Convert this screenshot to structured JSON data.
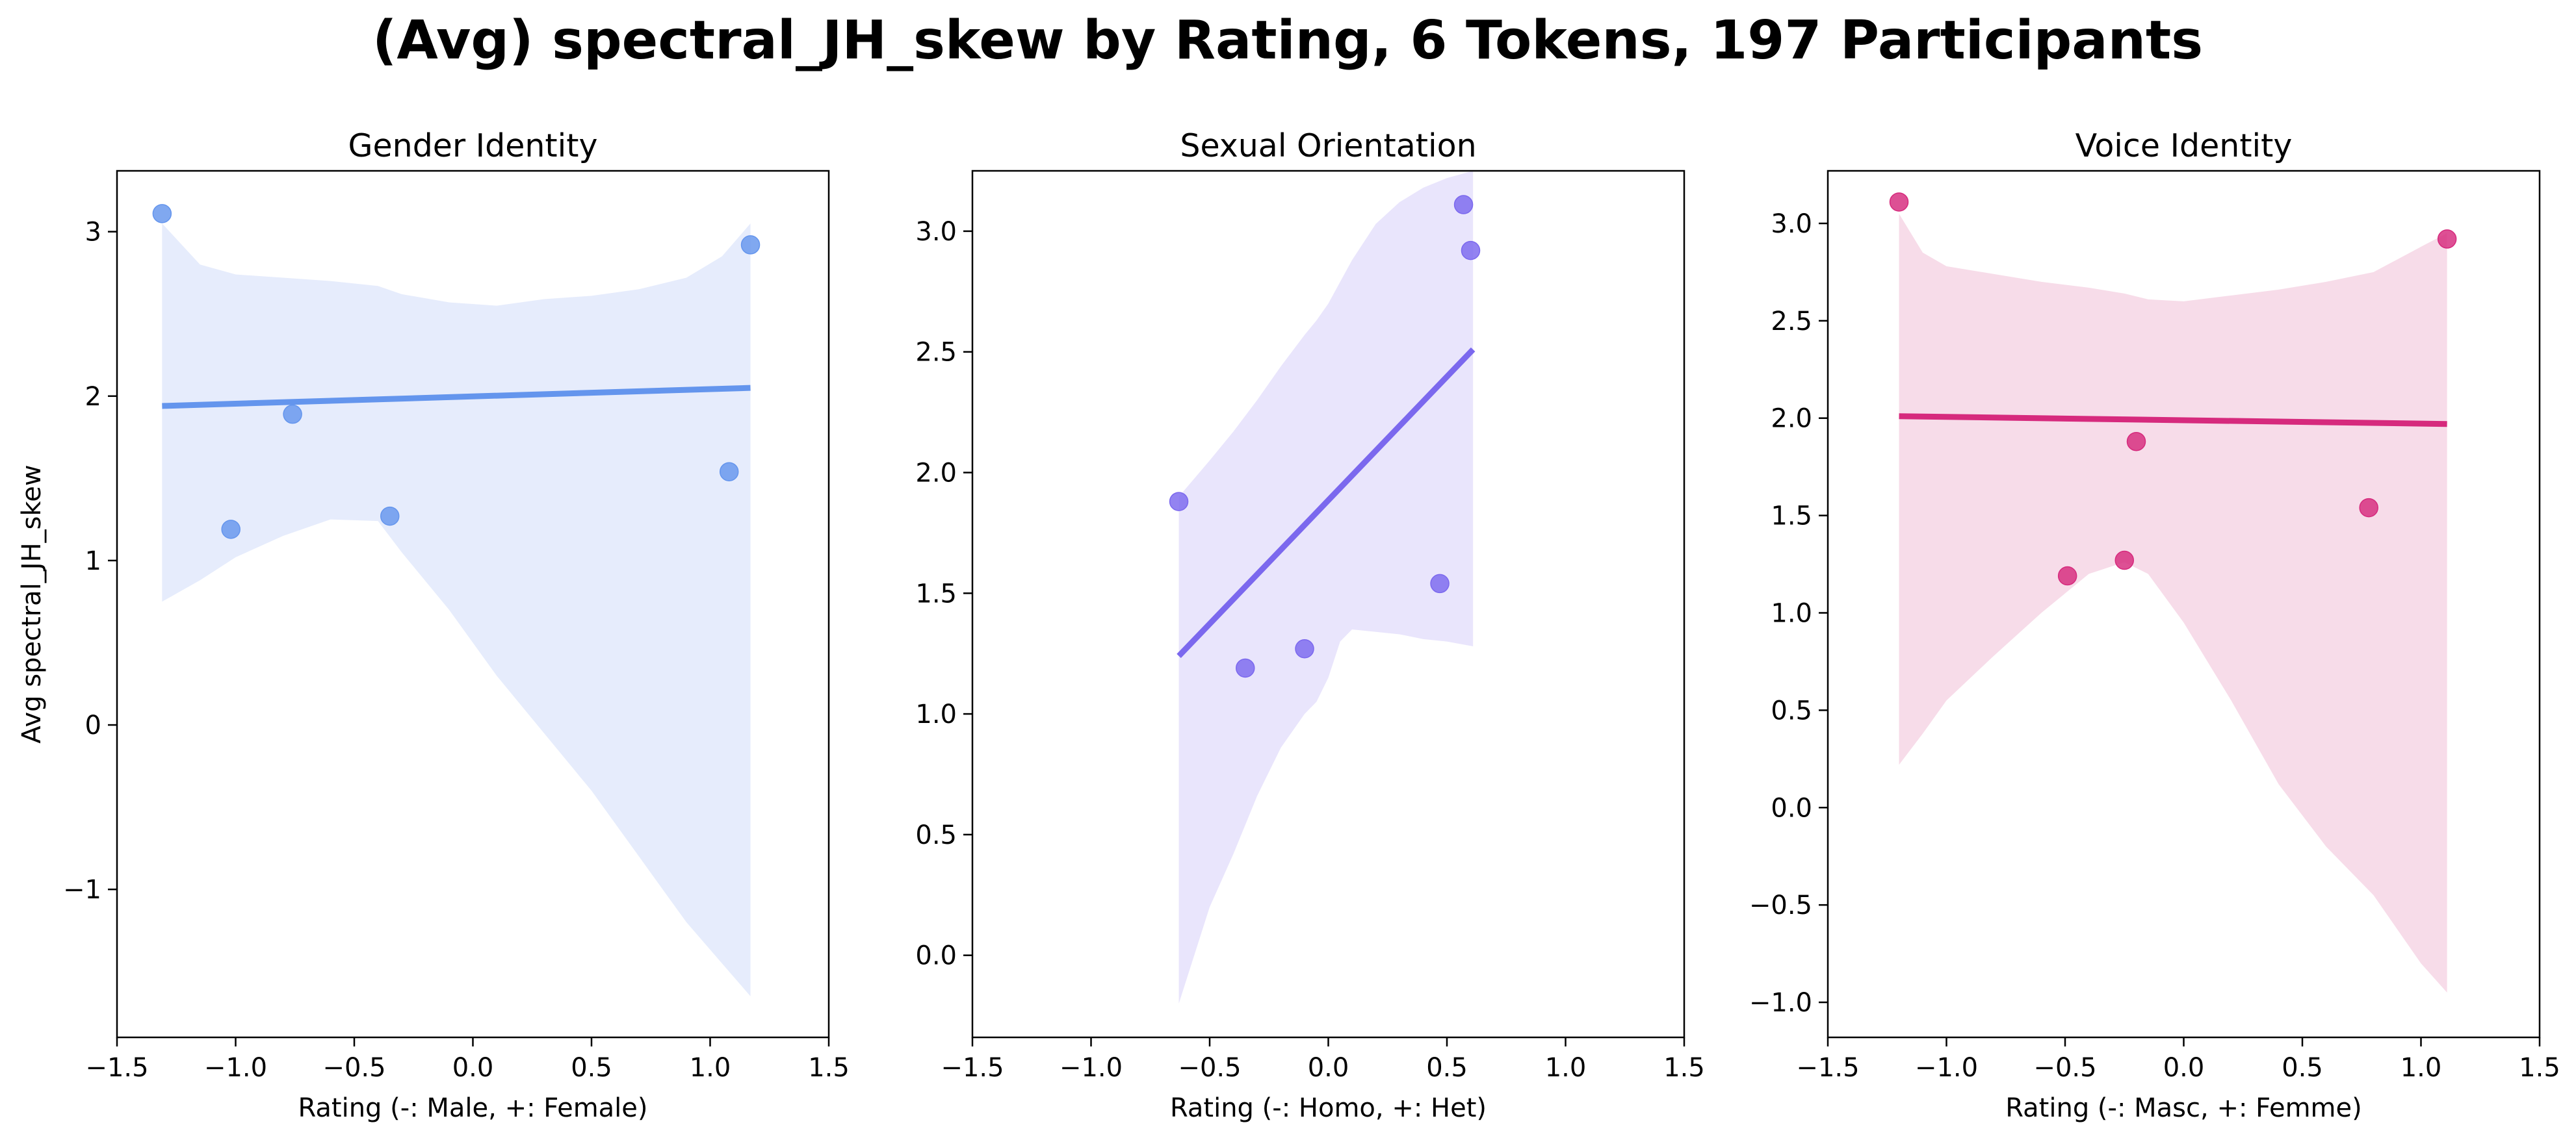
{
  "figure": {
    "title": "(Avg) spectral_JH_skew by Rating, 6 Tokens, 197 Participants"
  },
  "chart_data": [
    {
      "type": "scatter",
      "title": "Gender Identity",
      "xlabel": "Rating (-: Male, +: Female)",
      "ylabel": "Avg spectral_JH_skew",
      "xlim": [
        -1.5,
        1.5
      ],
      "ylim": [
        -1.9,
        3.37
      ],
      "xticks": [
        -1.5,
        -1.0,
        -0.5,
        0.0,
        0.5,
        1.0,
        1.5
      ],
      "xtick_labels": [
        "−1.5",
        "−1.0",
        "−0.5",
        "0.0",
        "0.5",
        "1.0",
        "1.5"
      ],
      "yticks": [
        -1,
        0,
        1,
        2,
        3
      ],
      "ytick_labels": [
        "−1",
        "0",
        "1",
        "2",
        "3"
      ],
      "color": "#6495ED",
      "band_color": "#E6ECFC",
      "points": [
        {
          "x": -1.31,
          "y": 3.11
        },
        {
          "x": -1.02,
          "y": 1.19
        },
        {
          "x": -0.76,
          "y": 1.89
        },
        {
          "x": -0.35,
          "y": 1.27
        },
        {
          "x": 1.08,
          "y": 1.54
        },
        {
          "x": 1.17,
          "y": 2.92
        }
      ],
      "fit": {
        "x": [
          -1.31,
          1.17
        ],
        "y": [
          1.94,
          2.05
        ]
      },
      "band": {
        "x": [
          -1.31,
          -1.15,
          -1.0,
          -0.8,
          -0.6,
          -0.4,
          -0.3,
          -0.1,
          0.1,
          0.3,
          0.5,
          0.7,
          0.9,
          1.05,
          1.17
        ],
        "upper": [
          3.05,
          2.8,
          2.74,
          2.72,
          2.7,
          2.67,
          2.62,
          2.57,
          2.55,
          2.59,
          2.61,
          2.65,
          2.72,
          2.85,
          3.05
        ],
        "lower": [
          0.75,
          0.88,
          1.02,
          1.15,
          1.25,
          1.24,
          1.05,
          0.7,
          0.3,
          -0.05,
          -0.4,
          -0.8,
          -1.2,
          -1.45,
          -1.65
        ]
      }
    },
    {
      "type": "scatter",
      "title": "Sexual Orientation",
      "xlabel": "Rating (-: Homo, +: Het)",
      "ylabel": "",
      "xlim": [
        -1.5,
        1.5
      ],
      "ylim": [
        -0.34,
        3.25
      ],
      "xticks": [
        -1.5,
        -1.0,
        -0.5,
        0.0,
        0.5,
        1.0,
        1.5
      ],
      "xtick_labels": [
        "−1.5",
        "−1.0",
        "−0.5",
        "0.0",
        "0.5",
        "1.0",
        "1.5"
      ],
      "yticks": [
        0.0,
        0.5,
        1.0,
        1.5,
        2.0,
        2.5,
        3.0
      ],
      "ytick_labels": [
        "0.0",
        "0.5",
        "1.0",
        "1.5",
        "2.0",
        "2.5",
        "3.0"
      ],
      "color": "#7B68EE",
      "band_color": "#E9E5FC",
      "points": [
        {
          "x": -0.63,
          "y": 1.88
        },
        {
          "x": -0.35,
          "y": 1.19
        },
        {
          "x": -0.1,
          "y": 1.27
        },
        {
          "x": 0.47,
          "y": 1.54
        },
        {
          "x": 0.57,
          "y": 3.11
        },
        {
          "x": 0.6,
          "y": 2.92
        }
      ],
      "fit": {
        "x": [
          -0.63,
          0.61
        ],
        "y": [
          1.24,
          2.51
        ]
      },
      "band": {
        "x": [
          -0.63,
          -0.5,
          -0.4,
          -0.3,
          -0.2,
          -0.1,
          -0.05,
          0.0,
          0.05,
          0.1,
          0.2,
          0.3,
          0.4,
          0.5,
          0.61
        ],
        "upper": [
          1.9,
          2.05,
          2.17,
          2.3,
          2.44,
          2.57,
          2.63,
          2.7,
          2.79,
          2.88,
          3.03,
          3.12,
          3.18,
          3.22,
          3.25
        ],
        "lower": [
          -0.2,
          0.2,
          0.42,
          0.66,
          0.86,
          1.0,
          1.05,
          1.15,
          1.3,
          1.35,
          1.34,
          1.33,
          1.31,
          1.3,
          1.28
        ]
      }
    },
    {
      "type": "scatter",
      "title": "Voice Identity",
      "xlabel": "Rating (-: Masc, +: Femme)",
      "ylabel": "",
      "xlim": [
        -1.5,
        1.5
      ],
      "ylim": [
        -1.18,
        3.27
      ],
      "xticks": [
        -1.5,
        -1.0,
        -0.5,
        0.0,
        0.5,
        1.0,
        1.5
      ],
      "xtick_labels": [
        "−1.5",
        "−1.0",
        "−0.5",
        "0.0",
        "0.5",
        "1.0",
        "1.5"
      ],
      "yticks": [
        -1.0,
        -0.5,
        0.0,
        0.5,
        1.0,
        1.5,
        2.0,
        2.5,
        3.0
      ],
      "ytick_labels": [
        "−1.0",
        "−0.5",
        "0.0",
        "0.5",
        "1.0",
        "1.5",
        "2.0",
        "2.5",
        "3.0"
      ],
      "color": "#D62A7D",
      "band_color": "#F7DCE9",
      "points": [
        {
          "x": -1.2,
          "y": 3.11
        },
        {
          "x": -0.49,
          "y": 1.19
        },
        {
          "x": -0.25,
          "y": 1.27
        },
        {
          "x": -0.2,
          "y": 1.88
        },
        {
          "x": 0.78,
          "y": 1.54
        },
        {
          "x": 1.11,
          "y": 2.92
        }
      ],
      "fit": {
        "x": [
          -1.2,
          1.11
        ],
        "y": [
          2.01,
          1.97
        ]
      },
      "band": {
        "x": [
          -1.2,
          -1.1,
          -1.0,
          -0.8,
          -0.6,
          -0.4,
          -0.25,
          -0.15,
          0.0,
          0.2,
          0.4,
          0.6,
          0.8,
          1.0,
          1.11
        ],
        "upper": [
          3.05,
          2.85,
          2.78,
          2.74,
          2.7,
          2.67,
          2.64,
          2.61,
          2.6,
          2.63,
          2.66,
          2.7,
          2.75,
          2.88,
          2.95
        ],
        "lower": [
          0.22,
          0.38,
          0.55,
          0.78,
          1.0,
          1.2,
          1.26,
          1.2,
          0.95,
          0.55,
          0.12,
          -0.2,
          -0.45,
          -0.8,
          -0.95
        ]
      }
    }
  ]
}
